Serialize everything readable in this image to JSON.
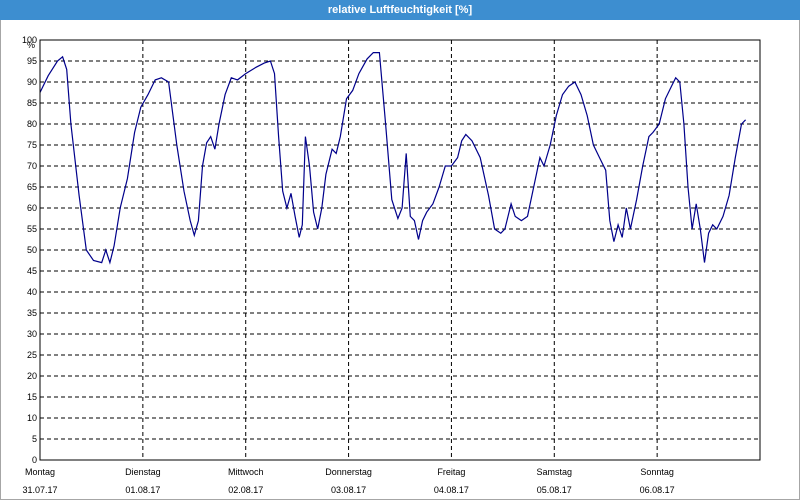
{
  "window": {
    "title": "relative Luftfeuchtigkeit [%]"
  },
  "chart_data": {
    "type": "line",
    "title": "relative Luftfeuchtigkeit [%]",
    "ylabel": "%",
    "xlabel": "",
    "ylim": [
      0,
      100
    ],
    "y_ticks": [
      0,
      5,
      10,
      15,
      20,
      25,
      30,
      35,
      40,
      45,
      50,
      55,
      60,
      65,
      70,
      75,
      80,
      85,
      90,
      95,
      100
    ],
    "grid": true,
    "line_color": "#00008b",
    "x_range_days": [
      0,
      7
    ],
    "x_labels": [
      {
        "day": "Montag",
        "date": "31.07.17"
      },
      {
        "day": "Dienstag",
        "date": "01.08.17"
      },
      {
        "day": "Mittwoch",
        "date": "02.08.17"
      },
      {
        "day": "Donnerstag",
        "date": "03.08.17"
      },
      {
        "day": "Freitag",
        "date": "04.08.17"
      },
      {
        "day": "Samstag",
        "date": "05.08.17"
      },
      {
        "day": "Sonntag",
        "date": "06.08.17"
      }
    ],
    "series": [
      {
        "values": [
          [
            0.0,
            87.5
          ],
          [
            0.08,
            91.5
          ],
          [
            0.17,
            95
          ],
          [
            0.22,
            96
          ],
          [
            0.26,
            93
          ],
          [
            0.3,
            80
          ],
          [
            0.38,
            63
          ],
          [
            0.45,
            50
          ],
          [
            0.52,
            47.5
          ],
          [
            0.6,
            47
          ],
          [
            0.64,
            50
          ],
          [
            0.68,
            47
          ],
          [
            0.72,
            51
          ],
          [
            0.78,
            60
          ],
          [
            0.85,
            67
          ],
          [
            0.92,
            78
          ],
          [
            0.98,
            84
          ],
          [
            1.05,
            87
          ],
          [
            1.12,
            90.5
          ],
          [
            1.18,
            91
          ],
          [
            1.25,
            90
          ],
          [
            1.33,
            75
          ],
          [
            1.4,
            64
          ],
          [
            1.46,
            57
          ],
          [
            1.5,
            53.5
          ],
          [
            1.54,
            57
          ],
          [
            1.58,
            70
          ],
          [
            1.62,
            75.5
          ],
          [
            1.66,
            77
          ],
          [
            1.7,
            74
          ],
          [
            1.74,
            80
          ],
          [
            1.8,
            87
          ],
          [
            1.86,
            91
          ],
          [
            1.92,
            90.5
          ],
          [
            2.0,
            92
          ],
          [
            2.1,
            93.5
          ],
          [
            2.18,
            94.5
          ],
          [
            2.24,
            95
          ],
          [
            2.28,
            92
          ],
          [
            2.32,
            77
          ],
          [
            2.36,
            64
          ],
          [
            2.4,
            60
          ],
          [
            2.44,
            63.5
          ],
          [
            2.48,
            58
          ],
          [
            2.52,
            53
          ],
          [
            2.55,
            56
          ],
          [
            2.58,
            77
          ],
          [
            2.62,
            70
          ],
          [
            2.66,
            59
          ],
          [
            2.7,
            55
          ],
          [
            2.74,
            60
          ],
          [
            2.78,
            68
          ],
          [
            2.84,
            74
          ],
          [
            2.88,
            73
          ],
          [
            2.92,
            77
          ],
          [
            2.98,
            86
          ],
          [
            3.04,
            88
          ],
          [
            3.1,
            92
          ],
          [
            3.18,
            95.5
          ],
          [
            3.24,
            97
          ],
          [
            3.3,
            97
          ],
          [
            3.36,
            80
          ],
          [
            3.42,
            62
          ],
          [
            3.48,
            57.5
          ],
          [
            3.52,
            60
          ],
          [
            3.56,
            73
          ],
          [
            3.6,
            58
          ],
          [
            3.64,
            57
          ],
          [
            3.68,
            52.5
          ],
          [
            3.72,
            57
          ],
          [
            3.76,
            59
          ],
          [
            3.82,
            61
          ],
          [
            3.88,
            65
          ],
          [
            3.94,
            70
          ],
          [
            4.0,
            70
          ],
          [
            4.06,
            72
          ],
          [
            4.1,
            76
          ],
          [
            4.14,
            77.5
          ],
          [
            4.2,
            76
          ],
          [
            4.28,
            72
          ],
          [
            4.36,
            63
          ],
          [
            4.42,
            55
          ],
          [
            4.48,
            54
          ],
          [
            4.52,
            55
          ],
          [
            4.58,
            61
          ],
          [
            4.62,
            58
          ],
          [
            4.68,
            57
          ],
          [
            4.74,
            58
          ],
          [
            4.8,
            65
          ],
          [
            4.86,
            72
          ],
          [
            4.9,
            70
          ],
          [
            4.96,
            75
          ],
          [
            5.02,
            82
          ],
          [
            5.08,
            87
          ],
          [
            5.14,
            89
          ],
          [
            5.2,
            90
          ],
          [
            5.26,
            87
          ],
          [
            5.32,
            82
          ],
          [
            5.38,
            75
          ],
          [
            5.44,
            72
          ],
          [
            5.5,
            69
          ],
          [
            5.54,
            57
          ],
          [
            5.58,
            52
          ],
          [
            5.62,
            56
          ],
          [
            5.66,
            53
          ],
          [
            5.7,
            60
          ],
          [
            5.74,
            55
          ],
          [
            5.8,
            62
          ],
          [
            5.86,
            70
          ],
          [
            5.92,
            77
          ],
          [
            5.96,
            78
          ],
          [
            6.02,
            80
          ],
          [
            6.08,
            86
          ],
          [
            6.14,
            89
          ],
          [
            6.18,
            91
          ],
          [
            6.22,
            90
          ],
          [
            6.26,
            80
          ],
          [
            6.3,
            65
          ],
          [
            6.34,
            55
          ],
          [
            6.38,
            61
          ],
          [
            6.42,
            55
          ],
          [
            6.46,
            47
          ],
          [
            6.5,
            54
          ],
          [
            6.54,
            56
          ],
          [
            6.58,
            55
          ],
          [
            6.64,
            58
          ],
          [
            6.7,
            63
          ],
          [
            6.76,
            72
          ],
          [
            6.82,
            80
          ],
          [
            6.86,
            81
          ]
        ]
      }
    ]
  }
}
